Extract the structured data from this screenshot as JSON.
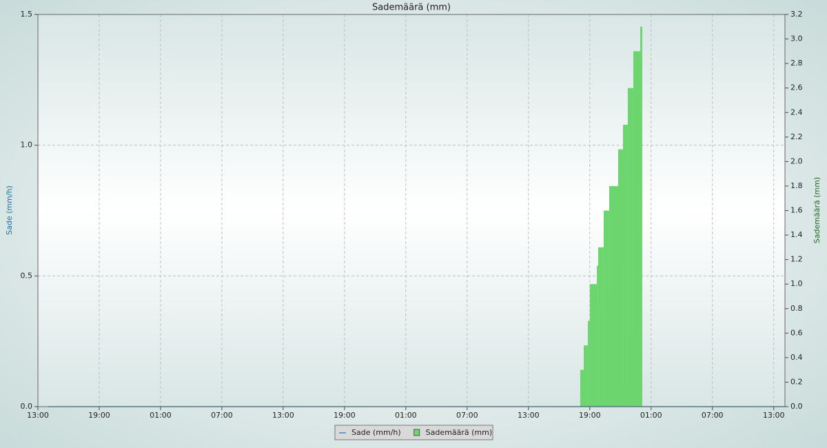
{
  "chart_data": {
    "type": "combo",
    "title": "Sademäärä (mm)",
    "ylabel": "Sade (mm/h)",
    "y2label": "Sademäärä (mm)",
    "xlim": [
      0,
      73.1
    ],
    "ylim": [
      0,
      1.5
    ],
    "y2lim": [
      0,
      3.2
    ],
    "grid": true,
    "legend": "bottom",
    "xticks": [
      {
        "value": 0,
        "label": "13:00"
      },
      {
        "value": 6,
        "label": "19:00"
      },
      {
        "value": 12,
        "label": "01:00"
      },
      {
        "value": 18,
        "label": "07:00"
      },
      {
        "value": 24,
        "label": "13:00"
      },
      {
        "value": 30,
        "label": "19:00"
      },
      {
        "value": 36,
        "label": "01:00"
      },
      {
        "value": 42,
        "label": "07:00"
      },
      {
        "value": 48,
        "label": "13:00"
      },
      {
        "value": 54,
        "label": "19:00"
      },
      {
        "value": 60,
        "label": "01:00"
      },
      {
        "value": 66,
        "label": "07:00"
      },
      {
        "value": 72,
        "label": "13:00"
      }
    ],
    "yticks": [
      {
        "value": 0,
        "label": "0.0"
      },
      {
        "value": 0.5,
        "label": "0.5"
      },
      {
        "value": 1,
        "label": "1.0"
      },
      {
        "value": 1.5,
        "label": "1.5"
      }
    ],
    "y2ticks": [
      {
        "value": 0,
        "label": "0.0"
      },
      0.2,
      0.4,
      0.6,
      0.8,
      {
        "value": 1,
        "label": "1.0"
      },
      1.2,
      1.4,
      1.6,
      1.8,
      {
        "value": 2,
        "label": "2.0"
      },
      2.2,
      2.4,
      2.6,
      2.8,
      {
        "value": 3,
        "label": "3.0"
      },
      3.2
    ],
    "series": [
      {
        "name": "Sade (mm/h)",
        "type": "line",
        "color": "#3a8fc0",
        "axis": "y",
        "x": [
          1,
          73.1
        ],
        "values": [
          0,
          0
        ]
      },
      {
        "name": "Sademäärä (mm)",
        "type": "bar",
        "color": "#6dd56d",
        "axis": "y2",
        "bins": [
          53.07,
          53.41,
          53.81,
          54.01,
          54.69,
          54.82,
          55.36,
          55.9,
          56.78,
          57.25,
          57.72,
          58.26,
          58.94,
          59.14
        ],
        "values": [
          0.3,
          0.5,
          0.7,
          1.0,
          1.15,
          1.3,
          1.6,
          1.8,
          2.1,
          2.3,
          2.6,
          2.9,
          3.1
        ]
      }
    ]
  }
}
